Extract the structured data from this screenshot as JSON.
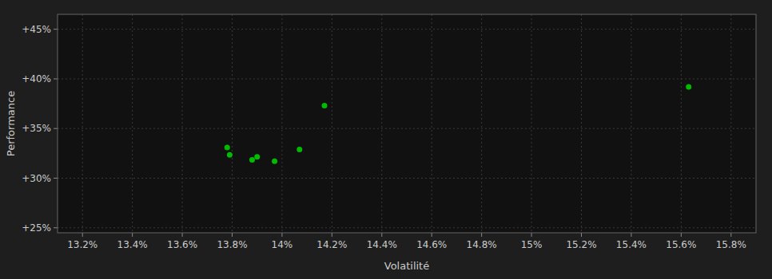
{
  "chart_data": {
    "type": "scatter",
    "xlabel": "Volatilité",
    "ylabel": "Performance",
    "x": [
      13.78,
      13.79,
      13.88,
      13.9,
      13.97,
      14.07,
      14.17,
      15.63
    ],
    "values": [
      33.1,
      32.35,
      31.85,
      32.15,
      31.7,
      32.9,
      37.3,
      39.2
    ],
    "color": "#00bb00",
    "xlim": [
      13.1,
      15.9
    ],
    "ylim": [
      24.5,
      46.5
    ],
    "xticks": [
      {
        "value": 13.2,
        "label": "13.2%"
      },
      {
        "value": 13.4,
        "label": "13.4%"
      },
      {
        "value": 13.6,
        "label": "13.6%"
      },
      {
        "value": 13.8,
        "label": "13.8%"
      },
      {
        "value": 14.0,
        "label": "14%"
      },
      {
        "value": 14.2,
        "label": "14.2%"
      },
      {
        "value": 14.4,
        "label": "14.4%"
      },
      {
        "value": 14.6,
        "label": "14.6%"
      },
      {
        "value": 14.8,
        "label": "14.8%"
      },
      {
        "value": 15.0,
        "label": "15%"
      },
      {
        "value": 15.2,
        "label": "15.2%"
      },
      {
        "value": 15.4,
        "label": "15.4%"
      },
      {
        "value": 15.6,
        "label": "15.6%"
      },
      {
        "value": 15.8,
        "label": "15.8%"
      }
    ],
    "yticks": [
      {
        "value": 25,
        "label": "+25%"
      },
      {
        "value": 30,
        "label": "+30%"
      },
      {
        "value": 35,
        "label": "+35%"
      },
      {
        "value": 40,
        "label": "+40%"
      },
      {
        "value": 45,
        "label": "+45%"
      }
    ],
    "grid": true
  }
}
